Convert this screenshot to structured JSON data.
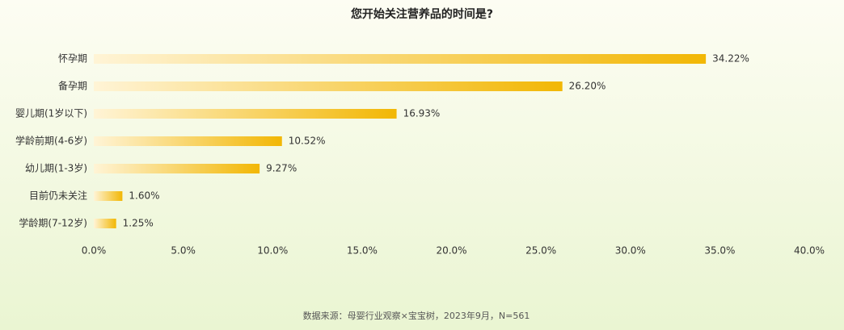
{
  "chart_data": {
    "type": "bar",
    "orientation": "horizontal",
    "title": "您开始关注营养品的时间是?",
    "categories": [
      "怀孕期",
      "备孕期",
      "婴儿期(1岁以下)",
      "学龄前期(4-6岁)",
      "幼儿期(1-3岁)",
      "目前仍未关注",
      "学龄期(7-12岁)"
    ],
    "values": [
      34.22,
      26.2,
      16.93,
      10.52,
      9.27,
      1.6,
      1.25
    ],
    "value_labels": [
      "34.22%",
      "26.20%",
      "16.93%",
      "10.52%",
      "9.27%",
      "1.60%",
      "1.25%"
    ],
    "color": "#f2b705",
    "xlim": [
      0,
      40
    ],
    "xticks": [
      {
        "value": 0,
        "label": "0.0%"
      },
      {
        "value": 5,
        "label": "5.0%"
      },
      {
        "value": 10,
        "label": "10.0%"
      },
      {
        "value": 15,
        "label": "15.0%"
      },
      {
        "value": 20,
        "label": "20.0%"
      },
      {
        "value": 25,
        "label": "25.0%"
      },
      {
        "value": 30,
        "label": "30.0%"
      },
      {
        "value": 35,
        "label": "35.0%"
      },
      {
        "value": 40,
        "label": "40.0%"
      }
    ],
    "grid": false,
    "source": "数据来源：母婴行业观察×宝宝树，2023年9月，N=561"
  }
}
